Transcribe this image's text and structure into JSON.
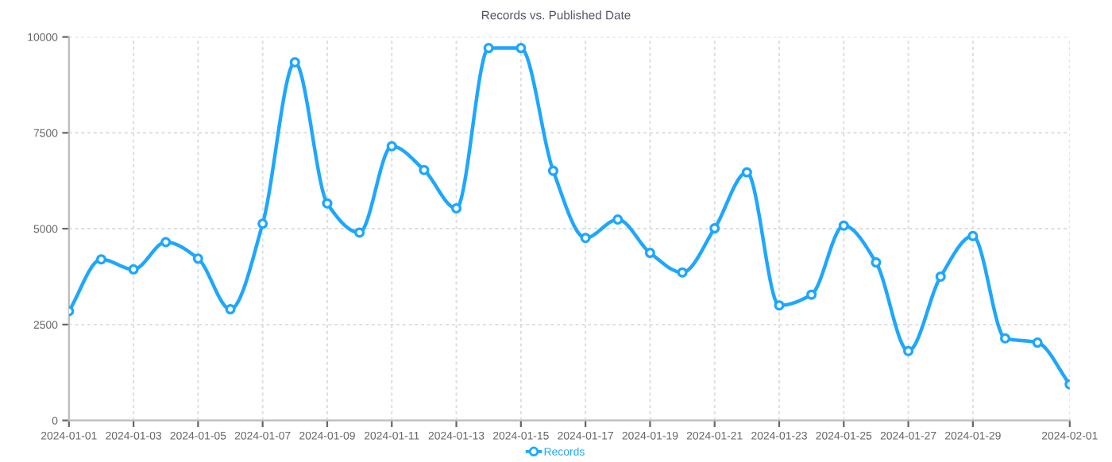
{
  "chart_data": {
    "type": "line",
    "title": "Records vs. Published Date",
    "x": [
      "2024-01-01",
      "2024-01-02",
      "2024-01-03",
      "2024-01-04",
      "2024-01-05",
      "2024-01-06",
      "2024-01-07",
      "2024-01-08",
      "2024-01-09",
      "2024-01-10",
      "2024-01-11",
      "2024-01-12",
      "2024-01-13",
      "2024-01-14",
      "2024-01-15",
      "2024-01-16",
      "2024-01-17",
      "2024-01-18",
      "2024-01-19",
      "2024-01-20",
      "2024-01-21",
      "2024-01-22",
      "2024-01-23",
      "2024-01-24",
      "2024-01-25",
      "2024-01-26",
      "2024-01-27",
      "2024-01-28",
      "2024-01-29",
      "2024-01-30",
      "2024-01-31",
      "2024-02-01"
    ],
    "series": [
      {
        "name": "Records",
        "color": "#1ea7fd",
        "values": [
          2850,
          4200,
          3940,
          4650,
          4220,
          2900,
          5130,
          9340,
          5660,
          4900,
          7150,
          6530,
          5530,
          9710,
          9710,
          6510,
          4760,
          5240,
          4370,
          3860,
          5010,
          6470,
          3000,
          3280,
          5080,
          4120,
          1810,
          3750,
          4810,
          2140,
          2030,
          940
        ]
      }
    ],
    "xlim": [
      "2024-01-01",
      "2024-02-01"
    ],
    "xticks": [
      "2024-01-01",
      "2024-01-03",
      "2024-01-05",
      "2024-01-07",
      "2024-01-09",
      "2024-01-11",
      "2024-01-13",
      "2024-01-15",
      "2024-01-17",
      "2024-01-19",
      "2024-01-21",
      "2024-01-23",
      "2024-01-25",
      "2024-01-27",
      "2024-01-29",
      "2024-02-01"
    ],
    "ylim": [
      0,
      10000
    ],
    "yticks": [
      0,
      2500,
      5000,
      7500,
      10000
    ],
    "grid": true,
    "legend": "bottom",
    "marker": "circle",
    "line_style": "solid"
  }
}
